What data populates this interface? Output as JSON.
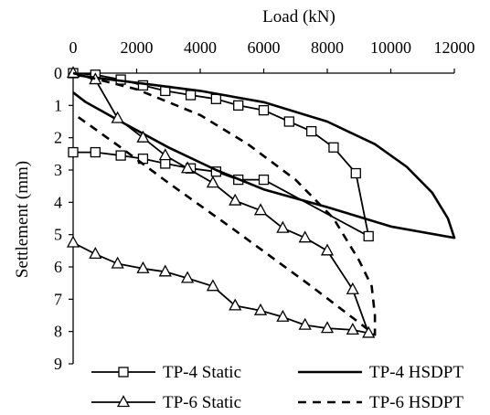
{
  "chart_data": {
    "type": "line",
    "xlabel": "Load (kN)",
    "ylabel": "Settlement (mm)",
    "xlim": [
      0,
      12000
    ],
    "ylim": [
      0,
      9
    ],
    "x_axis_position": "top",
    "y_axis_inverted": true,
    "grid": false,
    "legend_position": "bottom",
    "xticks": [
      "0",
      "2000",
      "4000",
      "6000",
      "8000",
      "10000",
      "12000"
    ],
    "yticks": [
      "0",
      "1",
      "2",
      "3",
      "4",
      "5",
      "6",
      "7",
      "8",
      "9"
    ],
    "series": [
      {
        "name": "TP-4 Static",
        "marker": "square",
        "line_style": "solid",
        "points": [
          [
            0,
            0
          ],
          [
            700,
            0.05
          ],
          [
            1500,
            0.2
          ],
          [
            2200,
            0.38
          ],
          [
            2900,
            0.55
          ],
          [
            3700,
            0.68
          ],
          [
            4500,
            0.8
          ],
          [
            5200,
            1.0
          ],
          [
            6000,
            1.15
          ],
          [
            6800,
            1.5
          ],
          [
            7500,
            1.8
          ],
          [
            8200,
            2.3
          ],
          [
            8900,
            3.1
          ],
          [
            9300,
            5.05
          ],
          [
            6000,
            3.3
          ],
          [
            5200,
            3.3
          ],
          [
            4500,
            3.05
          ],
          [
            3700,
            2.95
          ],
          [
            2900,
            2.8
          ],
          [
            2200,
            2.65
          ],
          [
            1500,
            2.55
          ],
          [
            700,
            2.45
          ],
          [
            0,
            2.45
          ]
        ]
      },
      {
        "name": "TP-4 HSDPT",
        "marker": "none",
        "line_style": "solid",
        "points": [
          [
            0,
            0.05
          ],
          [
            2000,
            0.3
          ],
          [
            4000,
            0.55
          ],
          [
            6000,
            0.9
          ],
          [
            8000,
            1.5
          ],
          [
            9500,
            2.2
          ],
          [
            10500,
            2.9
          ],
          [
            11300,
            3.7
          ],
          [
            11800,
            4.5
          ],
          [
            12000,
            5.1
          ],
          [
            10000,
            4.75
          ],
          [
            8000,
            4.15
          ],
          [
            6000,
            3.6
          ],
          [
            4500,
            3.0
          ],
          [
            3000,
            2.3
          ],
          [
            1500,
            1.5
          ],
          [
            400,
            0.9
          ],
          [
            0,
            0.6
          ]
        ]
      },
      {
        "name": "TP-6 Static",
        "marker": "triangle",
        "line_style": "solid",
        "points": [
          [
            0,
            0
          ],
          [
            700,
            0.2
          ],
          [
            1400,
            1.4
          ],
          [
            2200,
            2.0
          ],
          [
            2900,
            2.55
          ],
          [
            3600,
            2.95
          ],
          [
            4400,
            3.4
          ],
          [
            5100,
            3.95
          ],
          [
            5900,
            4.25
          ],
          [
            6600,
            4.8
          ],
          [
            7300,
            5.1
          ],
          [
            8000,
            5.5
          ],
          [
            8800,
            6.7
          ],
          [
            9300,
            8.05
          ],
          [
            8800,
            7.95
          ],
          [
            8000,
            7.9
          ],
          [
            7300,
            7.8
          ],
          [
            6600,
            7.55
          ],
          [
            5900,
            7.35
          ],
          [
            5100,
            7.2
          ],
          [
            4400,
            6.6
          ],
          [
            3600,
            6.35
          ],
          [
            2900,
            6.15
          ],
          [
            2200,
            6.05
          ],
          [
            1400,
            5.9
          ],
          [
            700,
            5.6
          ],
          [
            0,
            5.25
          ]
        ]
      },
      {
        "name": "TP-6 HSDPT",
        "marker": "none",
        "line_style": "dashed",
        "points": [
          [
            0,
            0
          ],
          [
            2000,
            0.5
          ],
          [
            4000,
            1.3
          ],
          [
            5500,
            2.2
          ],
          [
            7000,
            3.3
          ],
          [
            8200,
            4.5
          ],
          [
            9000,
            5.8
          ],
          [
            9400,
            6.6
          ],
          [
            9500,
            7.5
          ],
          [
            9500,
            8.1
          ],
          [
            7500,
            6.6
          ],
          [
            5000,
            4.8
          ],
          [
            3000,
            3.4
          ],
          [
            1500,
            2.3
          ],
          [
            500,
            1.6
          ],
          [
            0,
            1.25
          ]
        ]
      }
    ]
  }
}
